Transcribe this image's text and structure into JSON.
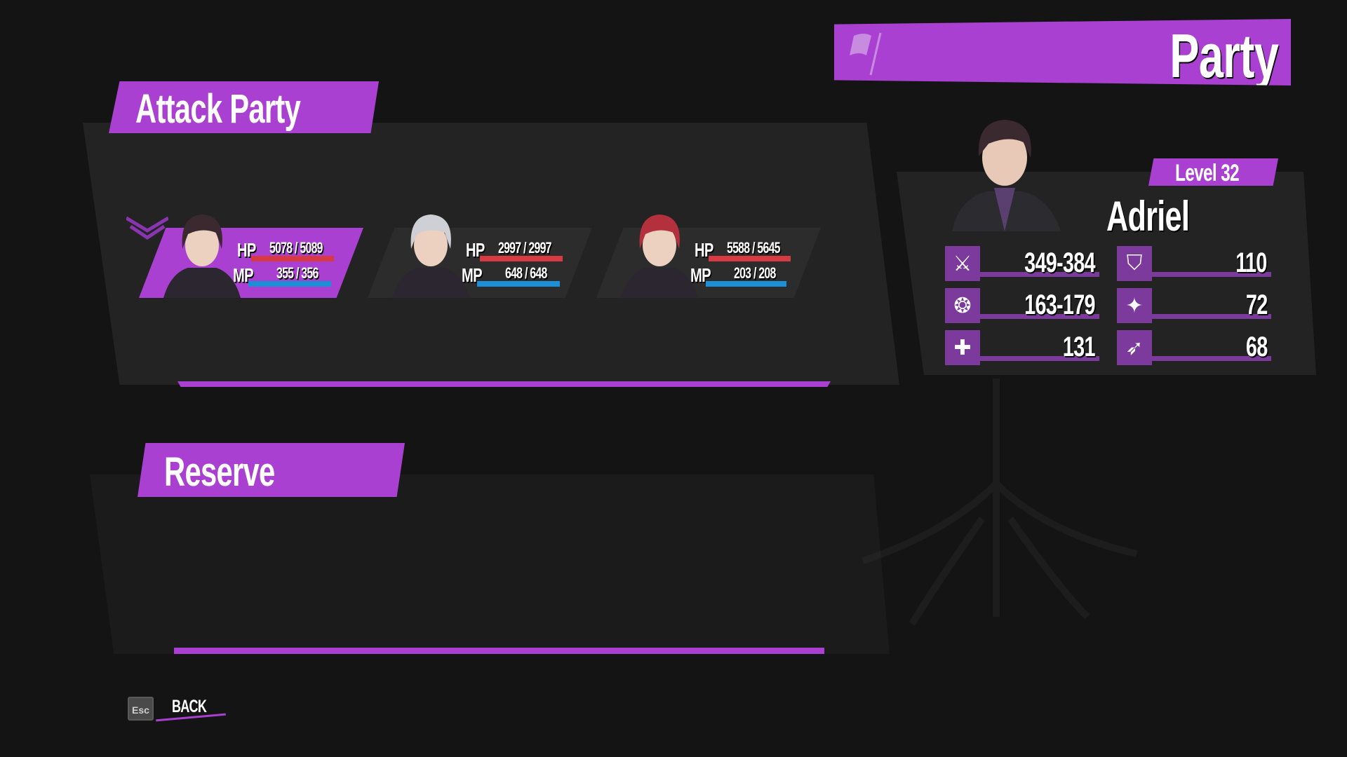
{
  "header": {
    "title": "Party",
    "icon": "flag-icon"
  },
  "colors": {
    "accent": "#a940d1",
    "hp": "#d83a44",
    "mp": "#1c8fd6",
    "panel": "#232323"
  },
  "attack_party": {
    "title": "Attack Party",
    "members": [
      {
        "hp_label": "HP",
        "hp": "5078 / 5089",
        "hp_fraction": 0.998,
        "mp_label": "MP",
        "mp": "355 / 356",
        "mp_fraction": 0.997,
        "selected": true,
        "hair": "#3a2a30"
      },
      {
        "hp_label": "HP",
        "hp": "2997 / 2997",
        "hp_fraction": 1.0,
        "mp_label": "MP",
        "mp": "648 / 648",
        "mp_fraction": 1.0,
        "selected": false,
        "hair": "#cfcfd6"
      },
      {
        "hp_label": "HP",
        "hp": "5588 / 5645",
        "hp_fraction": 0.99,
        "mp_label": "MP",
        "mp": "203 / 208",
        "mp_fraction": 0.976,
        "selected": false,
        "hair": "#b3303c"
      }
    ]
  },
  "reserve": {
    "title": "Reserve"
  },
  "character": {
    "name": "Adriel",
    "level": "Level 32",
    "stats": [
      {
        "icon": "attack-icon",
        "value": "349-384"
      },
      {
        "icon": "defense-icon",
        "value": "110"
      },
      {
        "icon": "magic-attack-icon",
        "value": "163-179"
      },
      {
        "icon": "magic-defense-icon",
        "value": "72"
      },
      {
        "icon": "critical-icon",
        "value": "131"
      },
      {
        "icon": "agility-icon",
        "value": "68"
      }
    ]
  },
  "footer": {
    "key": "Esc",
    "back_label": "BACK"
  }
}
